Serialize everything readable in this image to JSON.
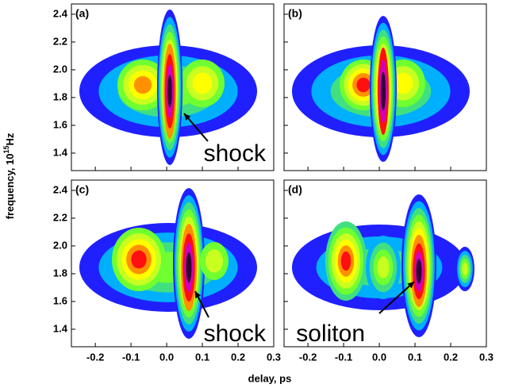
{
  "chart_data": {
    "type": "spectrogram",
    "xlabel": "delay, ps",
    "ylabel": {
      "text": "frequency, 10",
      "sup": "15",
      "unit": "Hz"
    },
    "xlim": [
      -0.267,
      0.3
    ],
    "ylim": [
      1.274,
      2.474
    ],
    "xticks": [
      -0.2,
      -0.1,
      {
        "value": 0,
        "label": "0.0"
      },
      0.1,
      0.2,
      0.3
    ],
    "yticks": [
      1.4,
      1.6,
      1.8,
      {
        "value": 2,
        "label": "2.0"
      },
      2.2,
      2.4
    ],
    "panels": [
      {
        "label": "(a)",
        "annotation": "shock"
      },
      {
        "label": "(b)"
      },
      {
        "label": "(c)",
        "annotation": "shock"
      },
      {
        "label": "(d)",
        "annotation": "soliton"
      }
    ]
  }
}
